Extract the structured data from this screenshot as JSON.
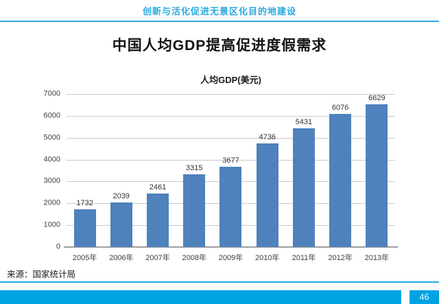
{
  "header": {
    "title": "创新与活化促进无景区化目的地建设"
  },
  "main": {
    "title": "中国人均GDP提高促进度假需求",
    "source": "来源：国家统计局"
  },
  "footer": {
    "page_number": "46"
  },
  "colors": {
    "accent": "#2aa9df",
    "footer_bar": "#00a3e2",
    "bar": "#4f81bd",
    "gridline": "#c9c9c9",
    "axis": "#9f9f9f",
    "tick_label": "#3f3f3f",
    "value_label": "#333333",
    "page_number_text": "#e8f7fd"
  },
  "chart_data": {
    "type": "bar",
    "title": "人均GDP(美元)",
    "categories": [
      "2005年",
      "2006年",
      "2007年",
      "2008年",
      "2009年",
      "2010年",
      "2011年",
      "2012年",
      "2013年"
    ],
    "values": [
      1732,
      2039,
      2461,
      3315,
      3677,
      4736,
      5431,
      6076,
      6629
    ],
    "xlabel": "",
    "ylabel": "",
    "ylim": [
      0,
      7000
    ],
    "ytick_step": 1000,
    "grid": true,
    "legend": "none"
  }
}
